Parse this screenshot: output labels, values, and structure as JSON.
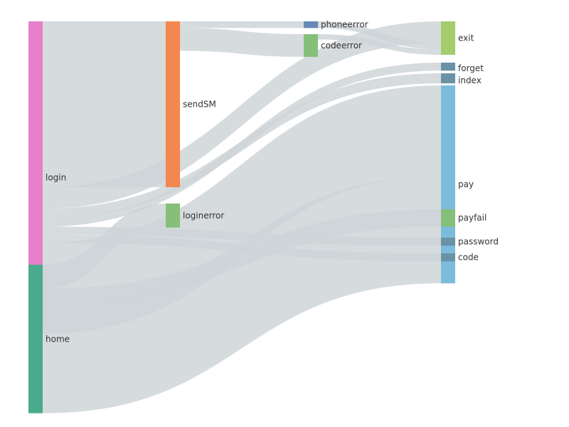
{
  "chart_data": {
    "type": "sankey",
    "title": "",
    "nodes": [
      {
        "id": "login",
        "label": "login",
        "column": 0,
        "color": "#e87fcd"
      },
      {
        "id": "home",
        "label": "home",
        "column": 0,
        "color": "#4aab8c"
      },
      {
        "id": "sendSM",
        "label": "sendSM",
        "column": 1,
        "color": "#f4874f"
      },
      {
        "id": "loginerror",
        "label": "loginerror",
        "column": 1,
        "color": "#86bf7a"
      },
      {
        "id": "phoneerror",
        "label": "phoneerror",
        "column": 2,
        "color": "#6789b8"
      },
      {
        "id": "codeerror",
        "label": "codeerror",
        "column": 2,
        "color": "#86bf7a"
      },
      {
        "id": "exit",
        "label": "exit",
        "column": 3,
        "color": "#a3ce6b"
      },
      {
        "id": "forget",
        "label": "forget",
        "column": 3,
        "color": "#6a92a6"
      },
      {
        "id": "index",
        "label": "index",
        "column": 3,
        "color": "#6a92a6"
      },
      {
        "id": "pay",
        "label": "pay",
        "column": 3,
        "color": "#7cbcdb"
      },
      {
        "id": "payfail",
        "label": "payfail",
        "column": 3,
        "color": "#86bf7a"
      },
      {
        "id": "password",
        "label": "password",
        "column": 3,
        "color": "#6a92a6"
      },
      {
        "id": "code",
        "label": "code",
        "column": 3,
        "color": "#6a92a6"
      }
    ],
    "links": [
      {
        "source": "login",
        "target": "sendSM",
        "value": 248
      },
      {
        "source": "sendSM",
        "target": "phoneerror",
        "value": 10
      },
      {
        "source": "sendSM",
        "target": "codeerror",
        "value": 34
      },
      {
        "source": "phoneerror",
        "target": "exit",
        "value": 10
      },
      {
        "source": "codeerror",
        "target": "exit",
        "value": 8
      },
      {
        "source": "login",
        "target": "exit",
        "value": 32
      },
      {
        "source": "login",
        "target": "index",
        "value": 15
      },
      {
        "source": "login",
        "target": "forget",
        "value": 12
      },
      {
        "source": "login",
        "target": "password",
        "value": 12
      },
      {
        "source": "login",
        "target": "code",
        "value": 12
      },
      {
        "source": "login",
        "target": "pay",
        "value": 136
      },
      {
        "source": "home",
        "target": "loginerror",
        "value": 36
      },
      {
        "source": "home",
        "target": "payfail",
        "value": 26
      },
      {
        "source": "home",
        "target": "pay",
        "value": 160
      }
    ],
    "link_color": "#cdd3d7"
  }
}
